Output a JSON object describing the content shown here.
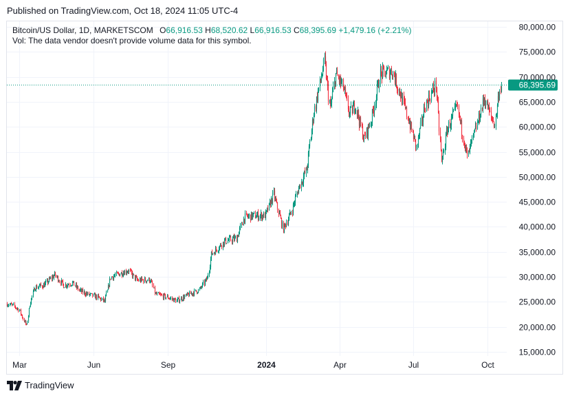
{
  "header": {
    "published": "Published on TradingView.com, Oct 18, 2024 11:05 UTC-4"
  },
  "legend": {
    "symbol": "Bitcoin/US Dollar, 1D, MARKETSCOM",
    "open_label": "O",
    "open": "66,916.53",
    "high_label": "H",
    "high": "68,520.62",
    "low_label": "L",
    "low": "66,916.53",
    "close_label": "C",
    "close": "68,395.69",
    "change": "+1,479.16 (+2.21%)",
    "volume_note": "Vol: The data vendor doesn't provide volume data for this symbol."
  },
  "footer": {
    "brand": "TradingView"
  },
  "colors": {
    "up": "#089981",
    "down": "#f23645",
    "grid": "#f0f3fa",
    "axis_text": "#131722",
    "price_line": "#089981"
  },
  "chart_data": {
    "type": "candlestick",
    "title": "Bitcoin/US Dollar, 1D, MARKETSCOM",
    "ylim": [
      15000,
      80000
    ],
    "y_ticks": [
      15000,
      20000,
      25000,
      30000,
      35000,
      40000,
      45000,
      50000,
      55000,
      60000,
      65000,
      70000,
      75000,
      80000
    ],
    "y_tick_labels": [
      "15,000.00",
      "20,000.00",
      "25,000.00",
      "30,000.00",
      "35,000.00",
      "40,000.00",
      "45,000.00",
      "50,000.00",
      "55,000.00",
      "60,000.00",
      "65,000.00",
      "70,000.00",
      "75,000.00",
      "80,000.00"
    ],
    "x_ticks": [
      {
        "label": "Mar",
        "date": "2023-03-01",
        "bold": false
      },
      {
        "label": "Jun",
        "date": "2023-06-01",
        "bold": false
      },
      {
        "label": "Sep",
        "date": "2023-09-01",
        "bold": false
      },
      {
        "label": "2024",
        "date": "2024-01-01",
        "bold": true
      },
      {
        "label": "Apr",
        "date": "2024-04-01",
        "bold": false
      },
      {
        "label": "Jul",
        "date": "2024-07-01",
        "bold": false
      },
      {
        "label": "Oct",
        "date": "2024-10-01",
        "bold": false
      }
    ],
    "x_range": [
      "2023-02-14",
      "2024-10-25"
    ],
    "last_price": 68395.69,
    "last_price_label": "68,395.69",
    "price_path": [
      [
        "2023-02-14",
        24600
      ],
      [
        "2023-02-22",
        24200
      ],
      [
        "2023-03-01",
        23400
      ],
      [
        "2023-03-10",
        20200
      ],
      [
        "2023-03-14",
        24500
      ],
      [
        "2023-03-20",
        27800
      ],
      [
        "2023-04-01",
        28400
      ],
      [
        "2023-04-14",
        30400
      ],
      [
        "2023-04-25",
        28300
      ],
      [
        "2023-05-06",
        28800
      ],
      [
        "2023-05-15",
        27200
      ],
      [
        "2023-05-25",
        26500
      ],
      [
        "2023-06-05",
        26000
      ],
      [
        "2023-06-15",
        25100
      ],
      [
        "2023-06-22",
        29900
      ],
      [
        "2023-07-01",
        30500
      ],
      [
        "2023-07-14",
        31300
      ],
      [
        "2023-07-25",
        29300
      ],
      [
        "2023-08-10",
        29400
      ],
      [
        "2023-08-17",
        26500
      ],
      [
        "2023-09-01",
        25900
      ],
      [
        "2023-09-12",
        25200
      ],
      [
        "2023-09-25",
        26300
      ],
      [
        "2023-10-10",
        27400
      ],
      [
        "2023-10-20",
        29700
      ],
      [
        "2023-10-25",
        34500
      ],
      [
        "2023-11-10",
        37100
      ],
      [
        "2023-11-25",
        37700
      ],
      [
        "2023-12-05",
        41900
      ],
      [
        "2023-12-15",
        42200
      ],
      [
        "2023-12-31",
        42300
      ],
      [
        "2024-01-10",
        46500
      ],
      [
        "2024-01-22",
        39600
      ],
      [
        "2024-02-01",
        43000
      ],
      [
        "2024-02-10",
        47800
      ],
      [
        "2024-02-20",
        51500
      ],
      [
        "2024-02-28",
        62000
      ],
      [
        "2024-03-05",
        67000
      ],
      [
        "2024-03-13",
        73000
      ],
      [
        "2024-03-20",
        63500
      ],
      [
        "2024-03-27",
        70500
      ],
      [
        "2024-04-05",
        68000
      ],
      [
        "2024-04-13",
        62500
      ],
      [
        "2024-04-20",
        64500
      ],
      [
        "2024-05-01",
        57500
      ],
      [
        "2024-05-10",
        61500
      ],
      [
        "2024-05-21",
        70500
      ],
      [
        "2024-06-05",
        71200
      ],
      [
        "2024-06-15",
        66500
      ],
      [
        "2024-06-25",
        61500
      ],
      [
        "2024-07-05",
        55800
      ],
      [
        "2024-07-15",
        64000
      ],
      [
        "2024-07-29",
        68500
      ],
      [
        "2024-08-05",
        52800
      ],
      [
        "2024-08-12",
        59500
      ],
      [
        "2024-08-24",
        64000
      ],
      [
        "2024-09-06",
        54000
      ],
      [
        "2024-09-18",
        60500
      ],
      [
        "2024-09-27",
        65800
      ],
      [
        "2024-10-05",
        62000
      ],
      [
        "2024-10-10",
        60500
      ],
      [
        "2024-10-15",
        66900
      ],
      [
        "2024-10-18",
        68395.69
      ]
    ]
  }
}
